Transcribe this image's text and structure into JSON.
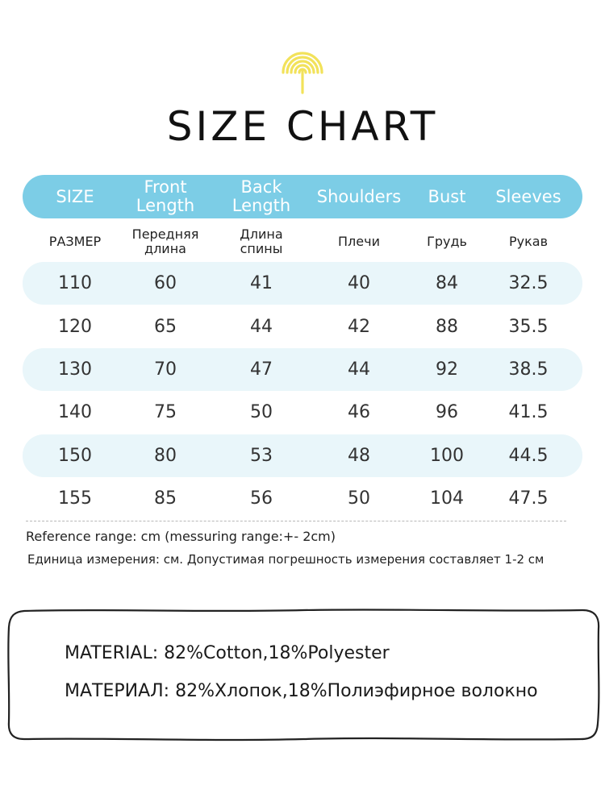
{
  "title": "SIZE CHART",
  "colors": {
    "header_bar": "#7ccde6",
    "row_shade": "#e9f6fa",
    "logo": "#f2e25a"
  },
  "icons": {
    "logo": "umbrella-logo-icon"
  },
  "table": {
    "headers_en": [
      "SIZE",
      "Front\nLength",
      "Back\nLength",
      "Shoulders",
      "Bust",
      "Sleeves"
    ],
    "headers_ru": [
      "РАЗМЕР",
      "Передняя\nдлина",
      "Длина\nспины",
      "Плечи",
      "Грудь",
      "Рукав"
    ],
    "rows": [
      [
        "110",
        "60",
        "41",
        "40",
        "84",
        "32.5"
      ],
      [
        "120",
        "65",
        "44",
        "42",
        "88",
        "35.5"
      ],
      [
        "130",
        "70",
        "47",
        "44",
        "92",
        "38.5"
      ],
      [
        "140",
        "75",
        "50",
        "46",
        "96",
        "41.5"
      ],
      [
        "150",
        "80",
        "53",
        "48",
        "100",
        "44.5"
      ],
      [
        "155",
        "85",
        "56",
        "50",
        "104",
        "47.5"
      ]
    ]
  },
  "notes": {
    "reference_en": "Reference range: cm (messuring range:+- 2cm)",
    "reference_ru": "Единица измерения: см. Допустимая погрешность измерения составляет 1-2 см"
  },
  "material": {
    "en_label": "MATERIAL:",
    "en_value": " 82%Cotton,18%Polyester",
    "ru_label": "МАТЕРИАЛ:",
    "ru_value": " 82%Хлопок,18%Полиэфирное волокно"
  }
}
